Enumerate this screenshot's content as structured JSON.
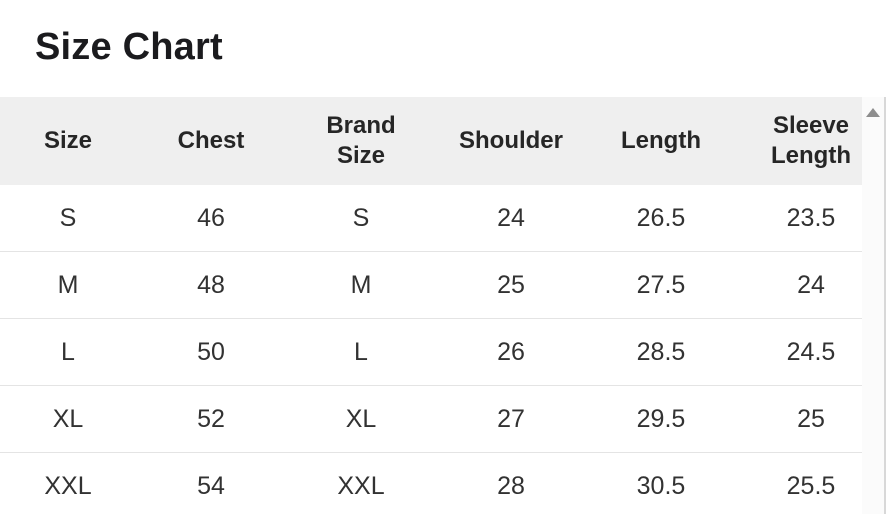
{
  "page": {
    "title": "Size Chart"
  },
  "table": {
    "columns": [
      "Size",
      "Chest",
      "Brand\nSize",
      "Shoulder",
      "Length",
      "Sleeve\nLength"
    ],
    "rows": [
      [
        "S",
        "46",
        "S",
        "24",
        "26.5",
        "23.5"
      ],
      [
        "M",
        "48",
        "M",
        "25",
        "27.5",
        "24"
      ],
      [
        "L",
        "50",
        "L",
        "26",
        "28.5",
        "24.5"
      ],
      [
        "XL",
        "52",
        "XL",
        "27",
        "29.5",
        "25"
      ],
      [
        "XXL",
        "54",
        "XXL",
        "28",
        "30.5",
        "25.5"
      ]
    ]
  },
  "scrollbar": {
    "up_arrow_icon": "triangle-up"
  },
  "colors": {
    "header_bg": "#efefef",
    "row_separator": "#e4e4e4",
    "title_text": "#1b1b1e",
    "header_text": "#262626",
    "cell_text": "#323232",
    "scrollbar_track": "#fbfbfb",
    "scrollbar_border": "#d8d8d8",
    "scrollbar_arrow": "#8e8e8e"
  }
}
